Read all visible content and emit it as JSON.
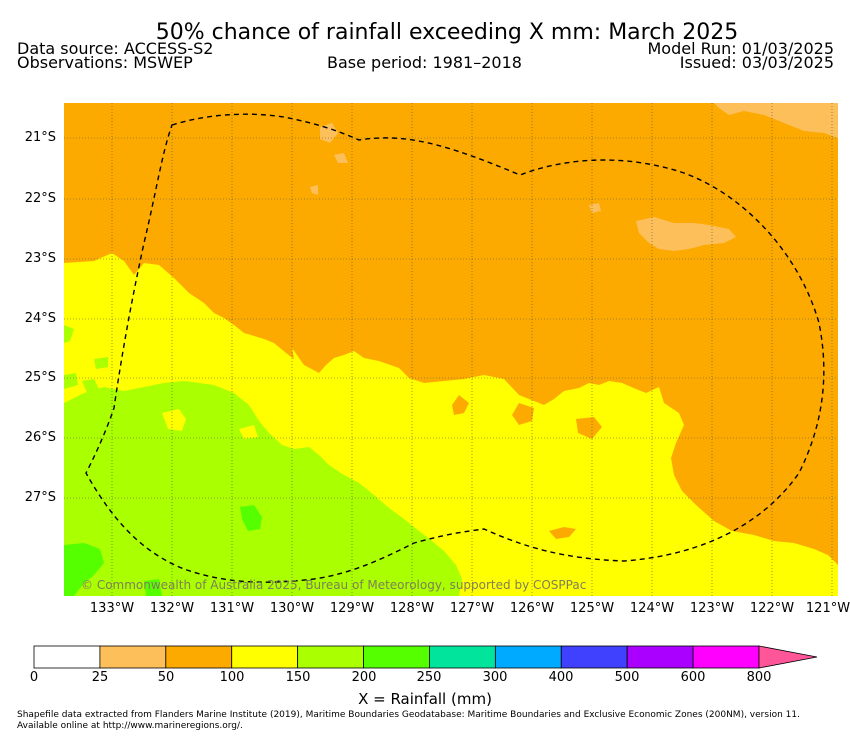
{
  "title": "50% chance of rainfall exceeding X mm: March 2025",
  "header": {
    "data_source": "Data source: ACCESS-S2",
    "observations": "Observations: MSWEP",
    "base_period": "Base period: 1981–2018",
    "model_run": "Model Run: 01/03/2025",
    "issued": "Issued: 03/03/2025"
  },
  "map": {
    "lat_labels": [
      "21°S",
      "22°S",
      "23°S",
      "24°S",
      "25°S",
      "26°S",
      "27°S"
    ],
    "lon_labels": [
      "133°W",
      "132°W",
      "131°W",
      "130°W",
      "129°W",
      "128°W",
      "127°W",
      "126°W",
      "125°W",
      "124°W",
      "123°W",
      "122°W",
      "121°W"
    ],
    "copyright": "© Commonwealth of Australia 2025, Bureau of Meteorology, supported by COSPPac",
    "boundary": "dashed maritime boundary (200NM EEZ)"
  },
  "colorbar": {
    "ticks": [
      "0",
      "25",
      "50",
      "100",
      "150",
      "200",
      "250",
      "300",
      "400",
      "500",
      "600",
      "800"
    ],
    "colors": [
      "#ffffff",
      "#fdbf5a",
      "#fdaa00",
      "#ffff00",
      "#aaff00",
      "#55ff00",
      "#00e59b",
      "#00aaff",
      "#4040ff",
      "#aa00ff",
      "#ff00ff",
      "#ff5599"
    ],
    "label": "X = Rainfall (mm)"
  },
  "footnote": "Shapefile data extracted from Flanders Marine Institute (2019), Maritime Boundaries Geodatabase: Maritime Boundaries and Exclusive Economic Zones (200NM), version 11. Available online at http://www.marineregions.org/."
}
